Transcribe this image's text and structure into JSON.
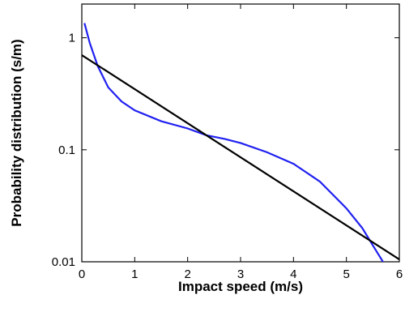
{
  "chart_data": {
    "type": "line",
    "xlabel": "Impact speed (m/s)",
    "ylabel": "Probability distribution (s/m)",
    "xlim": [
      0,
      6
    ],
    "xticks": [
      0,
      1,
      2,
      3,
      4,
      5,
      6
    ],
    "ylim": [
      0.01,
      2
    ],
    "yticks": [
      0.01,
      0.1,
      1
    ],
    "yscale": "log",
    "series": [
      {
        "color": "#2020f0",
        "x": [
          0.05,
          0.15,
          0.3,
          0.5,
          0.75,
          1,
          1.5,
          2,
          2.35,
          2.7,
          3,
          3.5,
          4,
          4.5,
          5,
          5.3,
          5.5,
          5.72
        ],
        "values": [
          1.35,
          0.9,
          0.56,
          0.36,
          0.27,
          0.225,
          0.18,
          0.155,
          0.135,
          0.125,
          0.115,
          0.095,
          0.075,
          0.052,
          0.03,
          0.02,
          0.014,
          0.0095
        ]
      },
      {
        "color": "#000000",
        "x": [
          0,
          6
        ],
        "values": [
          0.7,
          0.0105
        ]
      }
    ]
  }
}
